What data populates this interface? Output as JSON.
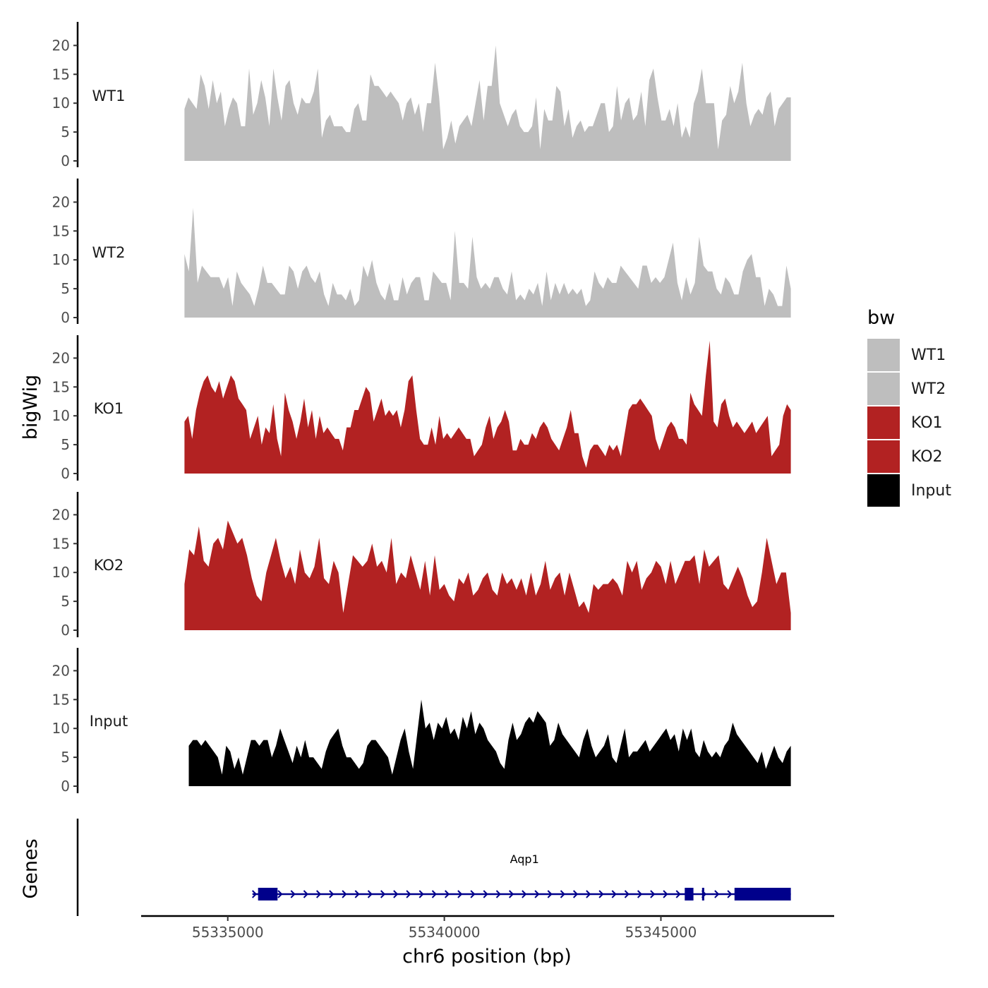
{
  "chart_data": {
    "type": "area",
    "chromosome": "chr6",
    "xlabel": "chr6 position (bp)",
    "ylabel": "bigWig",
    "genes_label": "Genes",
    "xlim": [
      55333000,
      55349000
    ],
    "x_ticks": [
      55335000,
      55340000,
      55345000
    ],
    "x_tick_labels": [
      "55335000",
      "55340000",
      "55345000"
    ],
    "ylim": [
      0,
      24
    ],
    "y_ticks": [
      0,
      5,
      10,
      15,
      20
    ],
    "y_tick_labels": [
      "0",
      "5",
      "10",
      "15",
      "20"
    ],
    "legend": {
      "title": "bw",
      "entries": [
        {
          "label": "WT1",
          "color": "#bebebe"
        },
        {
          "label": "WT2",
          "color": "#bebebe"
        },
        {
          "label": "KO1",
          "color": "#b22222"
        },
        {
          "label": "KO2",
          "color": "#b22222"
        },
        {
          "label": "Input",
          "color": "#000000"
        }
      ]
    },
    "series": [
      {
        "name": "WT1",
        "color": "#bebebe",
        "x_start": 55334000,
        "x_end": 55348000,
        "values": [
          9,
          11,
          10,
          9,
          15,
          13,
          9,
          14,
          10,
          12,
          6,
          9,
          11,
          10,
          6,
          6,
          16,
          8,
          10,
          14,
          11,
          6,
          16,
          11,
          7,
          13,
          14,
          10,
          8,
          11,
          10,
          10,
          12,
          16,
          4,
          7,
          8,
          6,
          6,
          6,
          5,
          5,
          9,
          10,
          7,
          7,
          15,
          13,
          13,
          12,
          11,
          12,
          11,
          10,
          7,
          10,
          11,
          8,
          10,
          5,
          10,
          10,
          17,
          11,
          2,
          4,
          7,
          3,
          6,
          7,
          8,
          6,
          10,
          14,
          7,
          13,
          13,
          20,
          10,
          8,
          6,
          8,
          9,
          6,
          5,
          5,
          6,
          11,
          2,
          9,
          7,
          7,
          13,
          12,
          6,
          9,
          4,
          6,
          7,
          5,
          6,
          6,
          8,
          10,
          10,
          5,
          6,
          13,
          7,
          10,
          11,
          7,
          8,
          12,
          6,
          14,
          16,
          11,
          7,
          7,
          9,
          6,
          10,
          4,
          6,
          4,
          10,
          12,
          16,
          10,
          10,
          10,
          2,
          7,
          8,
          13,
          10,
          12,
          17,
          10,
          6,
          8,
          9,
          8,
          11,
          12,
          6,
          9,
          10,
          11,
          11
        ]
      },
      {
        "name": "WT2",
        "color": "#bebebe",
        "x_start": 55334000,
        "x_end": 55348000,
        "values": [
          11,
          8,
          19,
          6,
          9,
          8,
          7,
          7,
          7,
          5,
          7,
          2,
          8,
          6,
          5,
          4,
          2,
          5,
          9,
          6,
          6,
          5,
          4,
          4,
          9,
          8,
          5,
          8,
          9,
          7,
          6,
          8,
          4,
          2,
          6,
          4,
          4,
          3,
          5,
          2,
          3,
          9,
          7,
          10,
          6,
          4,
          3,
          6,
          3,
          3,
          7,
          4,
          6,
          7,
          7,
          3,
          3,
          8,
          7,
          6,
          6,
          3,
          15,
          6,
          6,
          5,
          14,
          7,
          5,
          6,
          5,
          7,
          7,
          5,
          4,
          8,
          3,
          4,
          3,
          5,
          4,
          6,
          2,
          8,
          3,
          6,
          4,
          6,
          4,
          5,
          4,
          5,
          2,
          3,
          8,
          6,
          5,
          7,
          6,
          6,
          9,
          8,
          7,
          6,
          5,
          9,
          9,
          6,
          7,
          6,
          7,
          10,
          13,
          6,
          3,
          7,
          4,
          6,
          14,
          9,
          8,
          8,
          5,
          4,
          7,
          6,
          4,
          4,
          8,
          10,
          11,
          7,
          7,
          2,
          5,
          4,
          2,
          2,
          9,
          5
        ]
      },
      {
        "name": "KO1",
        "color": "#b22222",
        "x_start": 55334000,
        "x_end": 55348000,
        "values": [
          9,
          10,
          6,
          11,
          14,
          16,
          17,
          15,
          14,
          16,
          13,
          15,
          17,
          16,
          13,
          12,
          11,
          6,
          8,
          10,
          5,
          8,
          7,
          12,
          6,
          3,
          14,
          11,
          9,
          6,
          9,
          13,
          8,
          11,
          6,
          10,
          7,
          8,
          7,
          6,
          6,
          4,
          8,
          8,
          11,
          11,
          13,
          15,
          14,
          9,
          11,
          13,
          10,
          11,
          10,
          11,
          8,
          11,
          16,
          17,
          11,
          6,
          5,
          5,
          8,
          5,
          10,
          6,
          7,
          6,
          7,
          8,
          7,
          6,
          6,
          3,
          4,
          5,
          8,
          10,
          6,
          8,
          9,
          11,
          9,
          4,
          4,
          6,
          5,
          5,
          7,
          6,
          8,
          9,
          8,
          6,
          5,
          4,
          6,
          8,
          11,
          7,
          7,
          3,
          1,
          4,
          5,
          5,
          4,
          3,
          5,
          4,
          5,
          3,
          7,
          11,
          12,
          12,
          13,
          12,
          11,
          10,
          6,
          4,
          6,
          8,
          9,
          8,
          6,
          6,
          5,
          14,
          12,
          11,
          10,
          17,
          23,
          9,
          8,
          12,
          13,
          10,
          8,
          9,
          8,
          7,
          8,
          9,
          7,
          8,
          9,
          10,
          3,
          4,
          5,
          10,
          12,
          11
        ]
      },
      {
        "name": "KO2",
        "color": "#b22222",
        "x_start": 55334000,
        "x_end": 55348000,
        "values": [
          8,
          14,
          13,
          18,
          12,
          11,
          15,
          16,
          14,
          19,
          17,
          15,
          16,
          13,
          9,
          6,
          5,
          10,
          13,
          16,
          12,
          9,
          11,
          8,
          14,
          10,
          9,
          11,
          16,
          9,
          8,
          12,
          10,
          3,
          8,
          13,
          12,
          11,
          12,
          15,
          11,
          12,
          10,
          16,
          8,
          10,
          9,
          13,
          10,
          7,
          12,
          6,
          13,
          7,
          8,
          6,
          5,
          9,
          8,
          10,
          6,
          7,
          9,
          10,
          7,
          6,
          10,
          8,
          9,
          7,
          9,
          6,
          10,
          6,
          8,
          12,
          7,
          9,
          10,
          6,
          10,
          7,
          4,
          5,
          3,
          8,
          7,
          8,
          8,
          9,
          8,
          6,
          12,
          10,
          12,
          7,
          9,
          10,
          12,
          11,
          8,
          12,
          8,
          10,
          12,
          12,
          13,
          8,
          14,
          11,
          12,
          13,
          8,
          7,
          9,
          11,
          9,
          6,
          4,
          5,
          10,
          16,
          12,
          8,
          10,
          10,
          3
        ]
      },
      {
        "name": "Input",
        "color": "#000000",
        "x_start": 55334100,
        "x_end": 55348000,
        "values": [
          7,
          8,
          8,
          7,
          8,
          7,
          6,
          5,
          2,
          7,
          6,
          3,
          5,
          2,
          5,
          8,
          8,
          7,
          8,
          8,
          5,
          7,
          10,
          8,
          6,
          4,
          7,
          5,
          8,
          5,
          5,
          4,
          3,
          6,
          8,
          9,
          10,
          7,
          5,
          5,
          4,
          3,
          4,
          7,
          8,
          8,
          7,
          6,
          5,
          2,
          5,
          8,
          10,
          6,
          3,
          9,
          15,
          10,
          11,
          8,
          11,
          10,
          12,
          9,
          10,
          8,
          12,
          10,
          13,
          9,
          11,
          10,
          8,
          7,
          6,
          4,
          3,
          8,
          11,
          8,
          9,
          11,
          12,
          11,
          13,
          12,
          11,
          7,
          8,
          11,
          9,
          8,
          7,
          6,
          5,
          8,
          10,
          7,
          5,
          6,
          7,
          9,
          5,
          4,
          7,
          10,
          5,
          6,
          6,
          7,
          8,
          6,
          7,
          8,
          9,
          10,
          8,
          9,
          6,
          10,
          8,
          10,
          6,
          5,
          8,
          6,
          5,
          6,
          5,
          7,
          8,
          11,
          9,
          8,
          7,
          6,
          5,
          4,
          6,
          3,
          5,
          7,
          5,
          4,
          6,
          7
        ]
      }
    ],
    "gene": {
      "name": "Aqp1",
      "strand": "+",
      "color": "#00008b",
      "tx_start": 55335700,
      "tx_end": 55348000,
      "exons": [
        [
          55335700,
          55336150
        ],
        [
          55345550,
          55345750
        ],
        [
          55345950,
          55346000
        ],
        [
          55346700,
          55348000
        ]
      ]
    }
  }
}
